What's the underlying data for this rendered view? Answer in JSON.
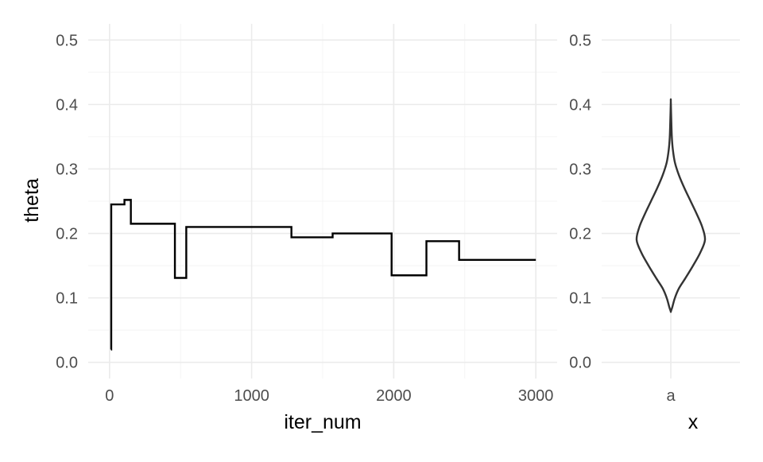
{
  "chart_data": [
    {
      "panel": "trace",
      "type": "line",
      "line_style": "step",
      "xlabel": "iter_num",
      "ylabel": "theta",
      "xlim": [
        -150,
        3150
      ],
      "ylim": [
        -0.025,
        0.525
      ],
      "x_ticks": [
        0,
        1000,
        2000,
        3000
      ],
      "x_tick_labels": [
        "0",
        "1000",
        "2000",
        "3000"
      ],
      "x_minor_ticks": [
        500,
        1500,
        2500
      ],
      "y_ticks": [
        0.0,
        0.1,
        0.2,
        0.3,
        0.4,
        0.5
      ],
      "y_tick_labels": [
        "0.0",
        "0.1",
        "0.2",
        "0.3",
        "0.4",
        "0.5"
      ],
      "y_minor_ticks": [
        0.05,
        0.15,
        0.25,
        0.35,
        0.45
      ],
      "grid": true,
      "series": [
        {
          "color": "#000000",
          "x": [
            10,
            12,
            105,
            150,
            460,
            540,
            1280,
            1570,
            1985,
            2230,
            2460,
            3000
          ],
          "y": [
            0.02,
            0.245,
            0.252,
            0.215,
            0.131,
            0.21,
            0.194,
            0.2,
            0.135,
            0.188,
            0.159,
            0.159
          ]
        }
      ]
    },
    {
      "panel": "violin",
      "type": "violin",
      "categories": [
        "a"
      ],
      "xlabel": "x",
      "ylabel": "",
      "ylim": [
        -0.025,
        0.525
      ],
      "y_ticks": [
        0.0,
        0.1,
        0.2,
        0.3,
        0.4,
        0.5
      ],
      "y_tick_labels": [
        "0.0",
        "0.1",
        "0.2",
        "0.3",
        "0.4",
        "0.5"
      ],
      "y_minor_ticks": [
        0.05,
        0.15,
        0.25,
        0.35,
        0.45
      ],
      "grid": true,
      "color": "#333333",
      "density": {
        "y": [
          0.079,
          0.085,
          0.1,
          0.115,
          0.13,
          0.15,
          0.17,
          0.19,
          0.21,
          0.23,
          0.25,
          0.27,
          0.29,
          0.31,
          0.33,
          0.35,
          0.38,
          0.405
        ],
        "relative_width": [
          0.0,
          0.04,
          0.12,
          0.24,
          0.42,
          0.65,
          0.86,
          1.0,
          0.92,
          0.76,
          0.58,
          0.4,
          0.24,
          0.12,
          0.06,
          0.03,
          0.012,
          0.0
        ]
      }
    }
  ]
}
